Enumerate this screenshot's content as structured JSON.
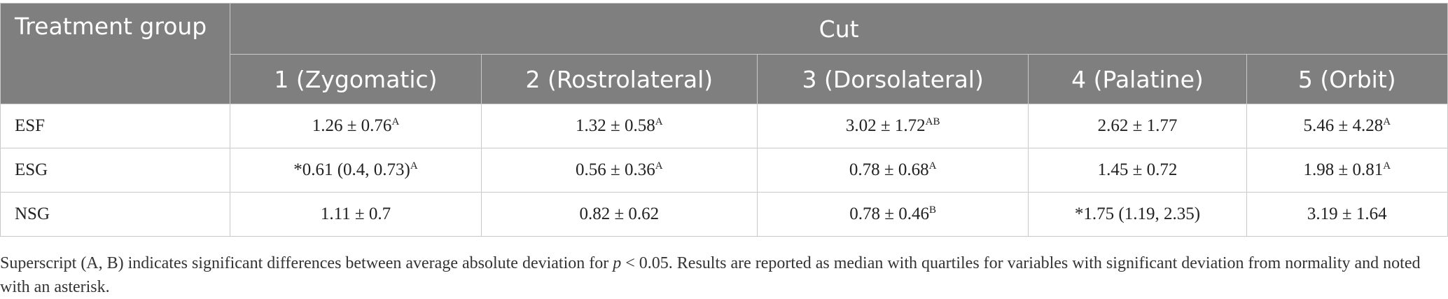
{
  "table": {
    "group_header": "Treatment group",
    "cut_header": "Cut",
    "columns": [
      "1 (Zygomatic)",
      "2 (Rostrolateral)",
      "3 (Dorsolateral)",
      "4 (Palatine)",
      "5 (Orbit)"
    ],
    "rows": [
      {
        "label": "ESF",
        "cells": [
          {
            "value": "1.26 ± 0.76",
            "sup": "A"
          },
          {
            "value": "1.32 ± 0.58",
            "sup": "A"
          },
          {
            "value": "3.02 ± 1.72",
            "sup": "AB"
          },
          {
            "value": "2.62 ± 1.77",
            "sup": ""
          },
          {
            "value": "5.46 ± 4.28",
            "sup": "A"
          }
        ]
      },
      {
        "label": "ESG",
        "cells": [
          {
            "value": "*0.61 (0.4, 0.73)",
            "sup": "A"
          },
          {
            "value": "0.56 ± 0.36",
            "sup": "A"
          },
          {
            "value": "0.78 ± 0.68",
            "sup": "A"
          },
          {
            "value": "1.45 ± 0.72",
            "sup": ""
          },
          {
            "value": "1.98 ± 0.81",
            "sup": "A"
          }
        ]
      },
      {
        "label": "NSG",
        "cells": [
          {
            "value": "1.11 ± 0.7",
            "sup": ""
          },
          {
            "value": "0.82 ± 0.62",
            "sup": ""
          },
          {
            "value": "0.78 ± 0.46",
            "sup": "B"
          },
          {
            "value": "*1.75 (1.19, 2.35)",
            "sup": ""
          },
          {
            "value": "3.19 ± 1.64",
            "sup": ""
          }
        ]
      }
    ]
  },
  "footnote": {
    "part1": "Superscript (A, B) indicates significant differences between average absolute deviation for ",
    "p_symbol": "p",
    "part2": " < 0.05. Results are reported as median with quartiles for variables with significant deviation from normality and noted with an asterisk."
  }
}
